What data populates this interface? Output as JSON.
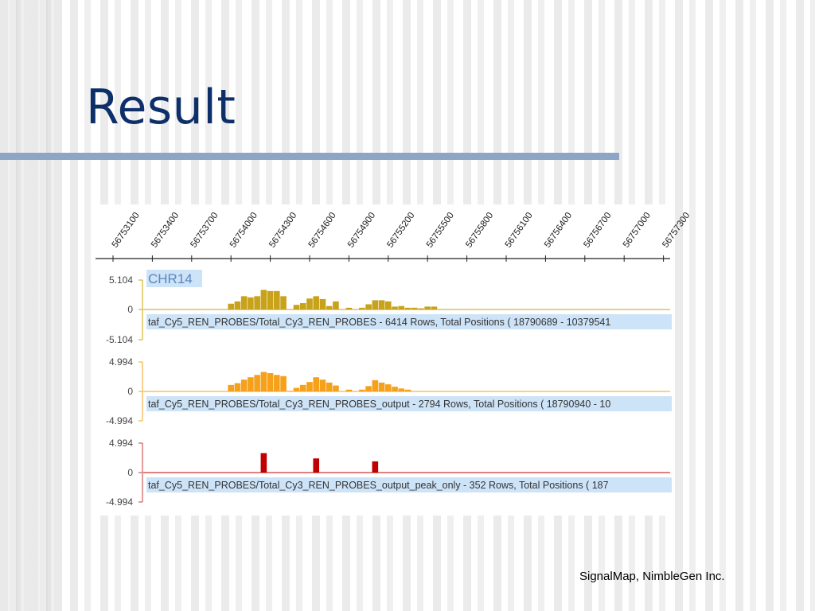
{
  "slide": {
    "title": "Result",
    "footer": "SignalMap, NimbleGen Inc."
  },
  "chart_data": {
    "type": "bar",
    "x_ticks": [
      "56753100",
      "56753400",
      "56753700",
      "56754000",
      "56754300",
      "56754600",
      "56754900",
      "56755200",
      "56755500",
      "56755800",
      "56756100",
      "56756400",
      "56756700",
      "56757000",
      "56757300"
    ],
    "x_positions": [
      56752950,
      56753000,
      56753050,
      56753100,
      56753150,
      56753200,
      56753250,
      56753300,
      56753350,
      56753400,
      56753450,
      56753500,
      56753550,
      56753600,
      56753650,
      56753700,
      56753750,
      56753800,
      56753850,
      56753900,
      56753950,
      56754000,
      56754050,
      56754100,
      56754150,
      56754200,
      56754250,
      56754300,
      56754350,
      56754400,
      56754450,
      56754500,
      56754550,
      56754600,
      56754650,
      56754700,
      56754750,
      56754800,
      56754850,
      56754900,
      56754950,
      56755000,
      56755050,
      56755100,
      56755150,
      56755200,
      56755250,
      56755300,
      56755350,
      56755400,
      56755450,
      56755500,
      56755550,
      56755600,
      56755650,
      56755700,
      56755750,
      56755800,
      56755850,
      56755900,
      56755950,
      56756000,
      56756050,
      56756100,
      56756150,
      56756200,
      56756250,
      56756300,
      56756350,
      56756400,
      56756450,
      56756500,
      56756550,
      56756600,
      56756650,
      56756700,
      56756750,
      56756800,
      56756850,
      56756900,
      56756950,
      56757000,
      56757050,
      56757100,
      56757150,
      56757200,
      56757250,
      56757300,
      56757350
    ],
    "chromosome_label": "CHR14",
    "tracks": [
      {
        "name": "taf_Cy5_REN_PROBES/Total_Cy3_REN_PROBES - 6414 Rows, Total Positions ( 18790689 - 10379541",
        "color": "#c8a21a",
        "ymax_label": "5.104",
        "zero_label": "0",
        "ymin_label": "-5.104",
        "ylim": [
          -5.104,
          5.104
        ],
        "bars": [
          {
            "x": 56754000,
            "y": 1.0
          },
          {
            "x": 56754050,
            "y": 1.4
          },
          {
            "x": 56754100,
            "y": 2.3
          },
          {
            "x": 56754150,
            "y": 2.1
          },
          {
            "x": 56754200,
            "y": 2.3
          },
          {
            "x": 56754250,
            "y": 3.4
          },
          {
            "x": 56754300,
            "y": 3.2
          },
          {
            "x": 56754350,
            "y": 3.2
          },
          {
            "x": 56754400,
            "y": 2.3
          },
          {
            "x": 56754500,
            "y": 0.8
          },
          {
            "x": 56754550,
            "y": 1.1
          },
          {
            "x": 56754600,
            "y": 1.9
          },
          {
            "x": 56754650,
            "y": 2.3
          },
          {
            "x": 56754700,
            "y": 1.8
          },
          {
            "x": 56754750,
            "y": 0.6
          },
          {
            "x": 56754800,
            "y": 1.4
          },
          {
            "x": 56754900,
            "y": 0.3
          },
          {
            "x": 56755000,
            "y": 0.3
          },
          {
            "x": 56755050,
            "y": 0.9
          },
          {
            "x": 56755100,
            "y": 1.6
          },
          {
            "x": 56755150,
            "y": 1.6
          },
          {
            "x": 56755200,
            "y": 1.4
          },
          {
            "x": 56755250,
            "y": 0.5
          },
          {
            "x": 56755300,
            "y": 0.6
          },
          {
            "x": 56755350,
            "y": 0.3
          },
          {
            "x": 56755400,
            "y": 0.3
          },
          {
            "x": 56755450,
            "y": 0.2
          },
          {
            "x": 56755500,
            "y": 0.5
          },
          {
            "x": 56755550,
            "y": 0.5
          }
        ]
      },
      {
        "name": "taf_Cy5_REN_PROBES/Total_Cy3_REN_PROBES_output - 2794 Rows, Total Positions ( 18790940 - 10",
        "color": "#f5a11c",
        "ymax_label": "4.994",
        "zero_label": "0",
        "ymin_label": "-4.994",
        "ylim": [
          -4.994,
          4.994
        ],
        "bars": [
          {
            "x": 56754000,
            "y": 1.1
          },
          {
            "x": 56754050,
            "y": 1.4
          },
          {
            "x": 56754100,
            "y": 2.0
          },
          {
            "x": 56754150,
            "y": 2.4
          },
          {
            "x": 56754200,
            "y": 2.8
          },
          {
            "x": 56754250,
            "y": 3.3
          },
          {
            "x": 56754300,
            "y": 3.1
          },
          {
            "x": 56754350,
            "y": 2.8
          },
          {
            "x": 56754400,
            "y": 2.6
          },
          {
            "x": 56754450,
            "y": 0.1
          },
          {
            "x": 56754500,
            "y": 0.6
          },
          {
            "x": 56754550,
            "y": 1.1
          },
          {
            "x": 56754600,
            "y": 1.6
          },
          {
            "x": 56754650,
            "y": 2.4
          },
          {
            "x": 56754700,
            "y": 2.0
          },
          {
            "x": 56754750,
            "y": 1.5
          },
          {
            "x": 56754800,
            "y": 1.0
          },
          {
            "x": 56754900,
            "y": 0.3
          },
          {
            "x": 56755000,
            "y": 0.3
          },
          {
            "x": 56755050,
            "y": 0.9
          },
          {
            "x": 56755100,
            "y": 1.9
          },
          {
            "x": 56755150,
            "y": 1.5
          },
          {
            "x": 56755200,
            "y": 1.2
          },
          {
            "x": 56755250,
            "y": 0.8
          },
          {
            "x": 56755300,
            "y": 0.5
          },
          {
            "x": 56755350,
            "y": 0.3
          }
        ]
      },
      {
        "name": "taf_Cy5_REN_PROBES/Total_Cy3_REN_PROBES_output_peak_only - 352 Rows, Total Positions ( 187",
        "color": "#c00000",
        "ymax_label": "4.994",
        "zero_label": "0",
        "ymin_label": "-4.994",
        "ylim": [
          -4.994,
          4.994
        ],
        "bars": [
          {
            "x": 56754250,
            "y": 3.3
          },
          {
            "x": 56754650,
            "y": 2.4
          },
          {
            "x": 56755100,
            "y": 1.9
          }
        ]
      }
    ]
  }
}
